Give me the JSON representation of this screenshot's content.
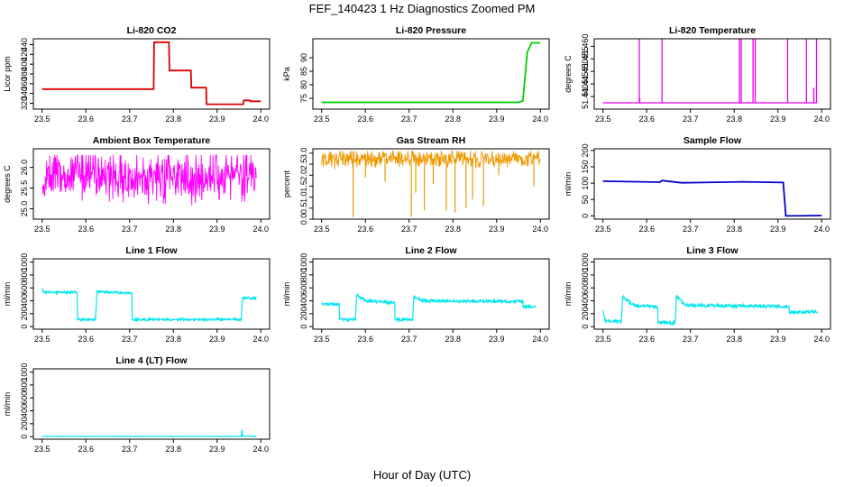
{
  "figure": {
    "title": "FEF_140423  1 Hz Diagnostics Zoomed PM",
    "xlabel": "Hour of Day (UTC)"
  },
  "chart_data": [
    {
      "id": "co2",
      "type": "line",
      "title": "Li-820 CO2",
      "ylabel": "Licor ppm",
      "color": "#dd0000",
      "xlim": [
        23.48,
        24.02
      ],
      "ylim": [
        308,
        452
      ],
      "xticks": [
        "23.5",
        "23.6",
        "23.7",
        "23.8",
        "23.9",
        "24.0"
      ],
      "yticks": [
        "320",
        "340",
        "360",
        "380",
        "400",
        "420",
        "440"
      ],
      "series": [
        {
          "x": [
            23.5,
            23.755,
            23.756,
            23.79,
            23.791,
            23.84,
            23.841,
            23.875,
            23.876,
            23.96,
            23.961,
            23.975,
            23.976,
            24.0
          ],
          "y": [
            349,
            349,
            445,
            445,
            387,
            387,
            352,
            352,
            318,
            318,
            326,
            326,
            324,
            324
          ]
        }
      ]
    },
    {
      "id": "pressure",
      "type": "line",
      "title": "Li-820 Pressure",
      "ylabel": "kPa",
      "color": "#00cc00",
      "xlim": [
        23.48,
        24.02
      ],
      "ylim": [
        71,
        97
      ],
      "xticks": [
        "23.5",
        "23.6",
        "23.7",
        "23.8",
        "23.9",
        "24.0"
      ],
      "yticks": [
        "75",
        "80",
        "85",
        "90"
      ],
      "series": [
        {
          "x": [
            23.5,
            23.95,
            23.96,
            23.965,
            23.97,
            23.98,
            24.0
          ],
          "y": [
            73.5,
            73.5,
            74,
            83,
            92,
            95.5,
            95.5
          ]
        }
      ]
    },
    {
      "id": "temperature",
      "type": "line",
      "title": "Li-820 Temperature",
      "ylabel": "degrees C",
      "color": "#ee00ee",
      "xlim": [
        23.48,
        24.02
      ],
      "ylim": [
        51.435,
        51.463
      ],
      "xticks": [
        "23.5",
        "23.6",
        "23.7",
        "23.8",
        "23.9",
        "24.0"
      ],
      "yticks": [
        "51.440",
        "51.445",
        "51.450",
        "51.455",
        "51.460"
      ],
      "baseline": 51.4375,
      "spikes": [
        {
          "x": 23.583,
          "y": 51.463
        },
        {
          "x": 23.584,
          "y": 51.4395
        },
        {
          "x": 23.635,
          "y": 51.463
        },
        {
          "x": 23.812,
          "y": 51.463
        },
        {
          "x": 23.816,
          "y": 51.463
        },
        {
          "x": 23.843,
          "y": 51.463
        },
        {
          "x": 23.848,
          "y": 51.463
        },
        {
          "x": 23.922,
          "y": 51.463
        },
        {
          "x": 23.965,
          "y": 51.463
        },
        {
          "x": 23.982,
          "y": 51.4435
        },
        {
          "x": 23.988,
          "y": 51.463
        }
      ]
    },
    {
      "id": "ambient",
      "type": "line",
      "title": "Ambient Box Temperature",
      "ylabel": "degrees C",
      "color": "#ff00ff",
      "xlim": [
        23.48,
        24.02
      ],
      "ylim": [
        24.75,
        26.45
      ],
      "xticks": [
        "23.5",
        "23.6",
        "23.7",
        "23.8",
        "23.9",
        "24.0"
      ],
      "yticks": [
        "25.0",
        "25.5",
        "26.0"
      ],
      "noise_band": {
        "x_start": 23.5,
        "x_end": 23.99,
        "center": 25.8,
        "min": 24.9,
        "max": 26.3
      }
    },
    {
      "id": "rh",
      "type": "line",
      "title": "Gas Stream RH",
      "ylabel": "percent",
      "color": "#ee9900",
      "xlim": [
        23.48,
        24.02
      ],
      "ylim": [
        0,
        3.2
      ],
      "xticks": [
        "23.5",
        "23.6",
        "23.7",
        "23.8",
        "23.9",
        "24.0"
      ],
      "yticks": [
        "0.0",
        "0.5",
        "1.0",
        "1.5",
        "2.0",
        "2.5",
        "3.0"
      ],
      "noise_band": {
        "x_start": 23.5,
        "x_end": 24.0,
        "center": 2.75,
        "min": 2.2,
        "max": 3.1
      },
      "dips": [
        {
          "x": 23.572,
          "y": 0.1
        },
        {
          "x": 23.6,
          "y": 1.9
        },
        {
          "x": 23.645,
          "y": 1.7
        },
        {
          "x": 23.705,
          "y": 0.1
        },
        {
          "x": 23.715,
          "y": 1.2
        },
        {
          "x": 23.735,
          "y": 0.4
        },
        {
          "x": 23.755,
          "y": 1.6
        },
        {
          "x": 23.785,
          "y": 0.4
        },
        {
          "x": 23.805,
          "y": 0.3
        },
        {
          "x": 23.83,
          "y": 0.5
        },
        {
          "x": 23.845,
          "y": 0.9
        },
        {
          "x": 23.87,
          "y": 0.6
        },
        {
          "x": 23.905,
          "y": 2.0
        },
        {
          "x": 23.985,
          "y": 1.5
        }
      ]
    },
    {
      "id": "sample",
      "type": "line",
      "title": "Sample Flow",
      "ylabel": "ml/min",
      "color": "#0000cc",
      "xlim": [
        23.48,
        24.02
      ],
      "ylim": [
        -10,
        205
      ],
      "xticks": [
        "23.5",
        "23.6",
        "23.7",
        "23.8",
        "23.9",
        "24.0"
      ],
      "yticks": [
        "0",
        "50",
        "100",
        "150",
        "200"
      ],
      "series": [
        {
          "x": [
            23.5,
            23.63,
            23.635,
            23.68,
            23.82,
            23.912,
            23.918,
            24.0
          ],
          "y": [
            106,
            103,
            108,
            101,
            104,
            102,
            0,
            1
          ]
        }
      ]
    },
    {
      "id": "line1",
      "type": "line",
      "title": "Line 1 Flow",
      "ylabel": "ml/min",
      "color": "#00e5ee",
      "xlim": [
        23.48,
        24.02
      ],
      "ylim": [
        -40,
        1050
      ],
      "xticks": [
        "23.5",
        "23.6",
        "23.7",
        "23.8",
        "23.9",
        "24.0"
      ],
      "yticks": [
        "0",
        "200",
        "400",
        "600",
        "800",
        "1000"
      ],
      "series": [
        {
          "x": [
            23.5,
            23.503,
            23.58,
            23.581,
            23.622,
            23.625,
            23.705,
            23.706,
            23.955,
            23.958,
            23.99
          ],
          "y": [
            600,
            530,
            530,
            110,
            110,
            540,
            520,
            110,
            110,
            440,
            440
          ],
          "noise": 18
        }
      ]
    },
    {
      "id": "line2",
      "type": "line",
      "title": "Line 2 Flow",
      "ylabel": "ml/min",
      "color": "#00e5ee",
      "xlim": [
        23.48,
        24.02
      ],
      "ylim": [
        -40,
        1050
      ],
      "xticks": [
        "23.5",
        "23.6",
        "23.7",
        "23.8",
        "23.9",
        "24.0"
      ],
      "yticks": [
        "0",
        "200",
        "400",
        "600",
        "800",
        "1000"
      ],
      "series": [
        {
          "x": [
            23.5,
            23.54,
            23.541,
            23.577,
            23.58,
            23.6,
            23.667,
            23.668,
            23.708,
            23.711,
            23.73,
            23.96,
            23.961,
            23.99
          ],
          "y": [
            350,
            350,
            110,
            110,
            490,
            400,
            370,
            110,
            110,
            460,
            400,
            390,
            300,
            320
          ],
          "noise": 22
        }
      ]
    },
    {
      "id": "line3",
      "type": "line",
      "title": "Line 3 Flow",
      "ylabel": "ml/min",
      "color": "#00e5ee",
      "xlim": [
        23.48,
        24.02
      ],
      "ylim": [
        -40,
        1050
      ],
      "xticks": [
        "23.5",
        "23.6",
        "23.7",
        "23.8",
        "23.9",
        "24.0"
      ],
      "yticks": [
        "0",
        "200",
        "400",
        "600",
        "800",
        "1000"
      ],
      "series": [
        {
          "x": [
            23.5,
            23.505,
            23.542,
            23.545,
            23.57,
            23.625,
            23.626,
            23.665,
            23.668,
            23.69,
            23.925,
            23.926,
            23.99
          ],
          "y": [
            250,
            80,
            80,
            460,
            330,
            300,
            60,
            60,
            470,
            330,
            310,
            220,
            230
          ],
          "noise": 25
        }
      ]
    },
    {
      "id": "line4",
      "type": "line",
      "title": "Line 4 (LT) Flow",
      "ylabel": "ml/min",
      "color": "#00e5ee",
      "xlim": [
        23.48,
        24.02
      ],
      "ylim": [
        -40,
        1050
      ],
      "xticks": [
        "23.5",
        "23.6",
        "23.7",
        "23.8",
        "23.9",
        "24.0"
      ],
      "yticks": [
        "0",
        "200",
        "400",
        "600",
        "800",
        "1000"
      ],
      "series": [
        {
          "x": [
            23.5,
            23.955,
            23.957,
            23.958,
            23.99
          ],
          "y": [
            5,
            5,
            110,
            10,
            5
          ],
          "noise": 3
        }
      ]
    }
  ]
}
